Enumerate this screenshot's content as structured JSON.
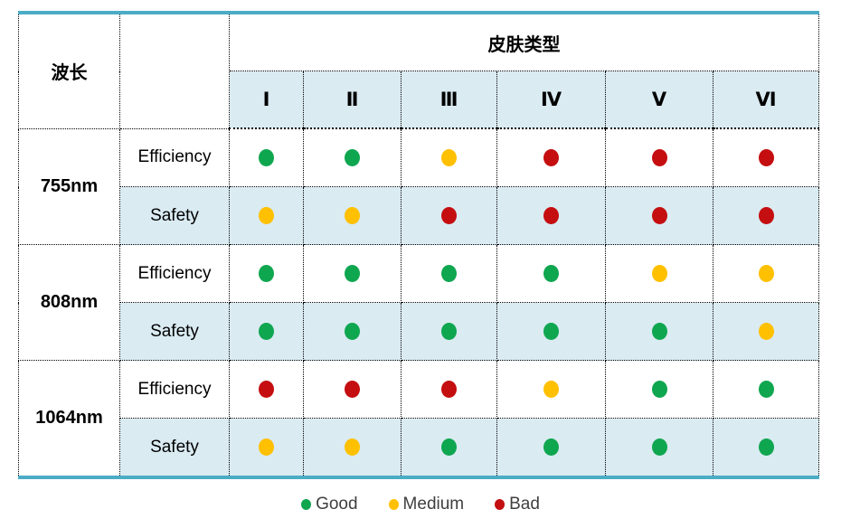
{
  "chart_data": {
    "type": "table",
    "row_group_header": "波长",
    "column_group_header": "皮肤类型",
    "columns": [
      "Ⅰ",
      "Ⅱ",
      "Ⅲ",
      "Ⅳ",
      "Ⅴ",
      "Ⅵ"
    ],
    "metrics": [
      "Efficiency",
      "Safety"
    ],
    "rows": [
      {
        "wavelength": "755nm",
        "Efficiency": [
          "good",
          "good",
          "medium",
          "bad",
          "bad",
          "bad"
        ],
        "Safety": [
          "medium",
          "medium",
          "bad",
          "bad",
          "bad",
          "bad"
        ]
      },
      {
        "wavelength": "808nm",
        "Efficiency": [
          "good",
          "good",
          "good",
          "good",
          "medium",
          "medium"
        ],
        "Safety": [
          "good",
          "good",
          "good",
          "good",
          "good",
          "medium"
        ]
      },
      {
        "wavelength": "1064nm",
        "Efficiency": [
          "bad",
          "bad",
          "bad",
          "medium",
          "good",
          "good"
        ],
        "Safety": [
          "medium",
          "medium",
          "good",
          "good",
          "good",
          "good"
        ]
      }
    ],
    "legend": [
      {
        "label": "Good",
        "value": "good"
      },
      {
        "label": "Medium",
        "value": "medium"
      },
      {
        "label": "Bad",
        "value": "bad"
      }
    ]
  },
  "colors": {
    "good": "#0FA650",
    "medium": "#FFC000",
    "bad": "#C40E10",
    "accent_line": "#4BACC6",
    "row_tint": "#DAEBF2"
  }
}
